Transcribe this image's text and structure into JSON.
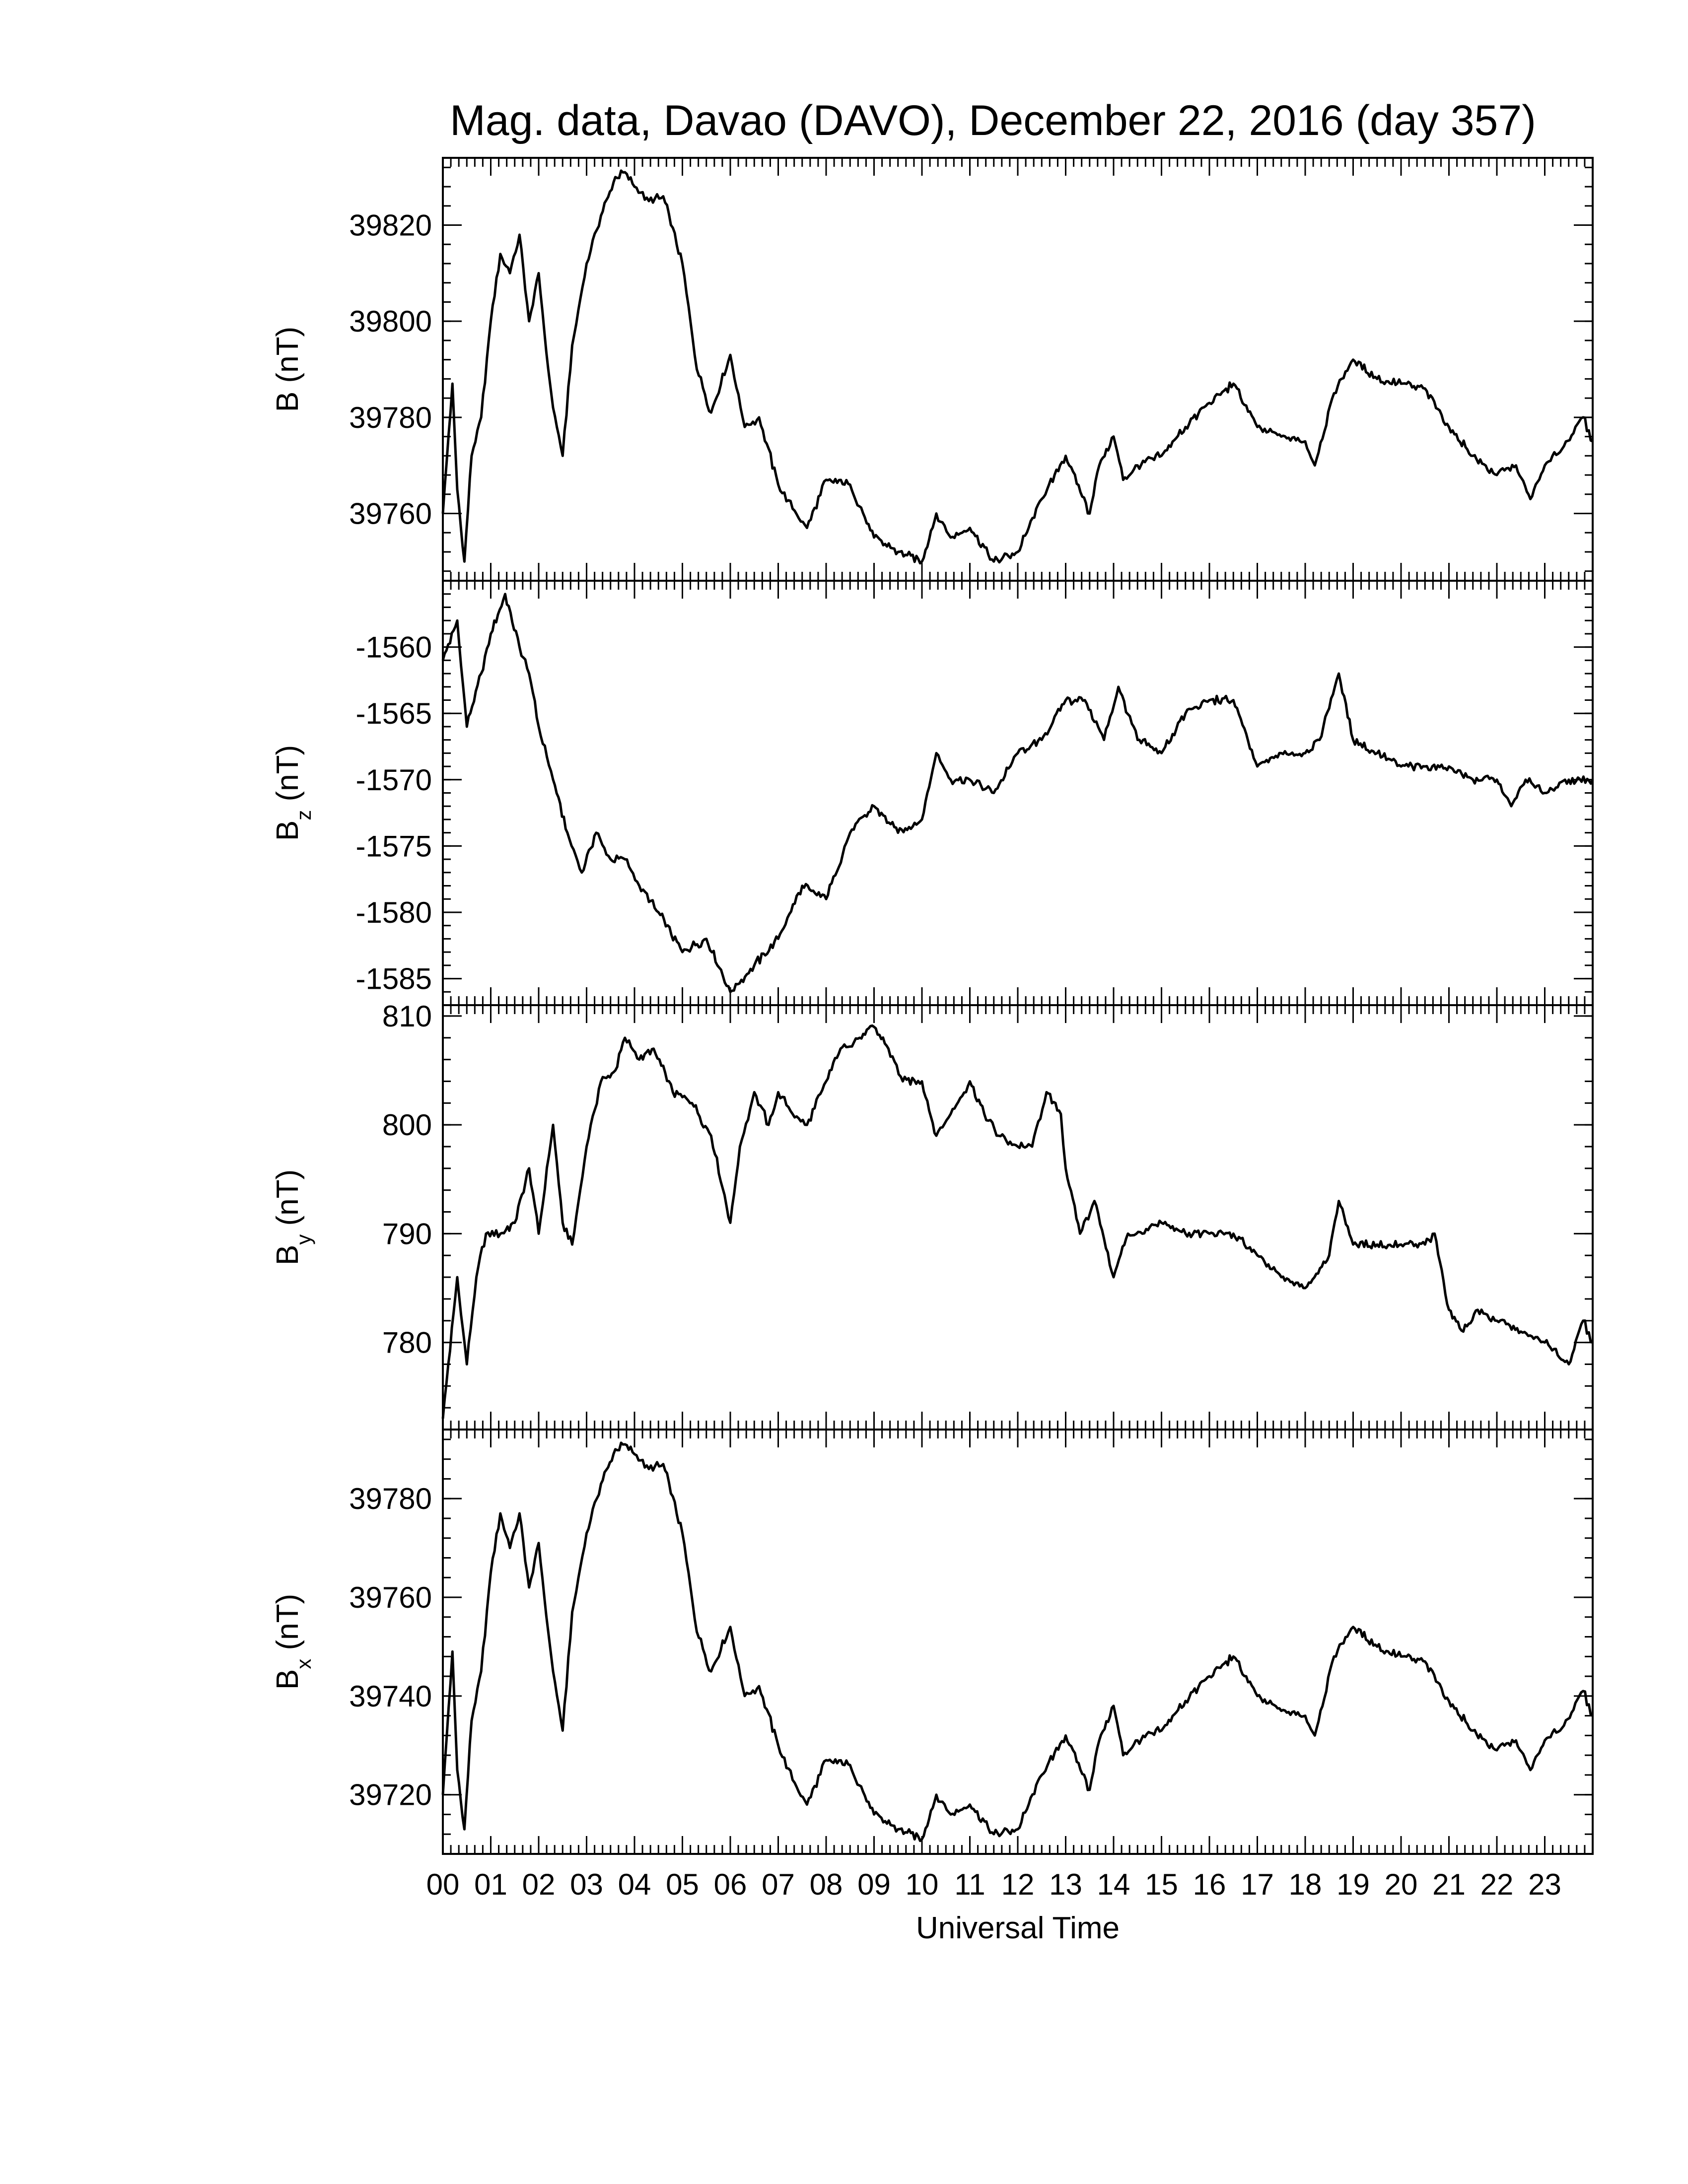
{
  "title": "Mag. data, Davao (DAVO), December 22, 2016 (day 357)",
  "x_axis": {
    "label": "Universal Time",
    "tick_labels": [
      "00",
      "01",
      "02",
      "03",
      "04",
      "05",
      "06",
      "07",
      "08",
      "09",
      "10",
      "11",
      "12",
      "13",
      "14",
      "15",
      "16",
      "17",
      "18",
      "19",
      "20",
      "21",
      "22",
      "23"
    ]
  },
  "chart_data": [
    {
      "type": "line",
      "panel": "B",
      "ylabel": "B (nT)",
      "ylabel_main": "B",
      "ylabel_sub": "",
      "ylabel_unit": "(nT)",
      "xlim": [
        0,
        24
      ],
      "ylim": [
        39746,
        39834
      ],
      "yticks": [
        39760,
        39780,
        39800,
        39820
      ],
      "yticklabels": [
        "39760",
        "39780",
        "39800",
        "39820"
      ],
      "x": [
        0.0,
        0.2,
        0.3,
        0.45,
        0.6,
        0.8,
        1.0,
        1.2,
        1.4,
        1.6,
        1.8,
        2.0,
        2.2,
        2.3,
        2.5,
        2.7,
        3.0,
        3.3,
        3.6,
        3.8,
        4.0,
        4.3,
        4.6,
        5.0,
        5.3,
        5.6,
        6.0,
        6.3,
        6.6,
        7.0,
        7.3,
        7.6,
        8.0,
        8.5,
        9.0,
        9.5,
        10.0,
        10.3,
        10.6,
        11.0,
        11.5,
        12.0,
        12.5,
        13.0,
        13.5,
        13.7,
        14.0,
        14.2,
        14.5,
        15.0,
        15.5,
        16.0,
        16.5,
        17.0,
        17.5,
        18.0,
        18.2,
        18.6,
        19.0,
        19.5,
        20.0,
        20.5,
        21.0,
        21.5,
        22.0,
        22.4,
        22.7,
        23.0,
        23.4,
        23.8,
        24.0
      ],
      "y": [
        39760,
        39787,
        39765,
        39750,
        39772,
        39780,
        39800,
        39814,
        39810,
        39818,
        39800,
        39810,
        39790,
        39782,
        39772,
        39795,
        39812,
        39822,
        39830,
        39831,
        39828,
        39825,
        39826,
        39812,
        39790,
        39781,
        39793,
        39778,
        39780,
        39766,
        39761,
        39757,
        39767,
        39766,
        39755,
        39752,
        39750,
        39760,
        39755,
        39757,
        39750,
        39752,
        39763,
        39772,
        39760,
        39770,
        39776,
        39767,
        39770,
        39772,
        39778,
        39783,
        39787,
        39778,
        39776,
        39775,
        39770,
        39785,
        39792,
        39788,
        39787,
        39786,
        39778,
        39772,
        39768,
        39770,
        39763,
        39770,
        39774,
        39780,
        39775
      ]
    },
    {
      "type": "line",
      "panel": "Bz",
      "ylabel": "Bz (nT)",
      "ylabel_main": "B",
      "ylabel_sub": "z",
      "ylabel_unit": "(nT)",
      "xlim": [
        0,
        24
      ],
      "ylim": [
        -1587,
        -1555
      ],
      "yticks": [
        -1585,
        -1580,
        -1575,
        -1570,
        -1565,
        -1560
      ],
      "yticklabels": [
        "-1585",
        "-1580",
        "-1575",
        "-1570",
        "-1565",
        "-1560"
      ],
      "x": [
        0.0,
        0.3,
        0.5,
        0.8,
        1.0,
        1.3,
        1.6,
        1.8,
        2.0,
        2.3,
        2.6,
        2.9,
        3.2,
        3.5,
        3.8,
        4.1,
        4.5,
        5.0,
        5.5,
        6.0,
        6.5,
        7.0,
        7.5,
        8.0,
        8.5,
        9.0,
        9.5,
        10.0,
        10.3,
        10.6,
        11.0,
        11.5,
        12.0,
        12.5,
        13.0,
        13.4,
        13.8,
        14.1,
        14.5,
        15.0,
        15.5,
        16.0,
        16.5,
        17.0,
        17.5,
        18.0,
        18.3,
        18.7,
        19.0,
        19.5,
        20.0,
        20.5,
        21.0,
        21.5,
        22.0,
        22.3,
        22.6,
        23.0,
        23.5,
        24.0
      ],
      "y": [
        -1561,
        -1558,
        -1566,
        -1562,
        -1559,
        -1556,
        -1560,
        -1562,
        -1566,
        -1570,
        -1574,
        -1577,
        -1574,
        -1576,
        -1576,
        -1578,
        -1580,
        -1583,
        -1582,
        -1586,
        -1584,
        -1582,
        -1578,
        -1579,
        -1574,
        -1572,
        -1574,
        -1573,
        -1568,
        -1570,
        -1570,
        -1571,
        -1568,
        -1567,
        -1564,
        -1564,
        -1567,
        -1563,
        -1567,
        -1568,
        -1565,
        -1564,
        -1564,
        -1569,
        -1568,
        -1568,
        -1567,
        -1562,
        -1567,
        -1568,
        -1569,
        -1569,
        -1569,
        -1570,
        -1570,
        -1572,
        -1570,
        -1571,
        -1570,
        -1570
      ]
    },
    {
      "type": "line",
      "panel": "By",
      "ylabel": "By (nT)",
      "ylabel_main": "B",
      "ylabel_sub": "y",
      "ylabel_unit": "(nT)",
      "xlim": [
        0,
        24
      ],
      "ylim": [
        772,
        811
      ],
      "yticks": [
        780,
        790,
        800,
        810
      ],
      "yticklabels": [
        "780",
        "790",
        "800",
        "810"
      ],
      "x": [
        0.0,
        0.3,
        0.5,
        0.7,
        0.9,
        1.2,
        1.5,
        1.8,
        2.0,
        2.3,
        2.5,
        2.7,
        3.0,
        3.3,
        3.6,
        3.8,
        4.1,
        4.4,
        4.8,
        5.2,
        5.6,
        6.0,
        6.2,
        6.5,
        6.8,
        7.0,
        7.3,
        7.6,
        8.0,
        8.3,
        8.7,
        9.0,
        9.3,
        9.6,
        10.0,
        10.3,
        10.6,
        11.0,
        11.3,
        11.6,
        12.0,
        12.3,
        12.6,
        12.9,
        13.0,
        13.3,
        13.6,
        14.0,
        14.3,
        14.6,
        15.0,
        15.5,
        16.0,
        16.5,
        17.0,
        17.5,
        18.0,
        18.5,
        18.7,
        19.0,
        19.5,
        20.0,
        20.5,
        20.7,
        21.0,
        21.3,
        21.6,
        22.0,
        22.5,
        23.0,
        23.5,
        23.8,
        24.0
      ],
      "y": [
        773,
        786,
        778,
        786,
        790,
        790,
        791,
        796,
        790,
        800,
        791,
        789,
        798,
        804,
        805,
        808,
        806,
        807,
        803,
        802,
        799,
        791,
        798,
        803,
        800,
        803,
        801,
        800,
        804,
        807,
        808,
        809,
        807,
        804,
        804,
        799,
        801,
        804,
        801,
        799,
        798,
        798,
        803,
        801,
        796,
        790,
        793,
        786,
        790,
        790,
        791,
        790,
        790,
        790,
        788,
        786,
        785,
        788,
        793,
        789,
        789,
        789,
        789,
        790,
        783,
        781,
        783,
        782,
        781,
        780,
        778,
        782,
        780
      ]
    },
    {
      "type": "line",
      "panel": "Bx",
      "ylabel": "Bx (nT)",
      "ylabel_main": "B",
      "ylabel_sub": "x",
      "ylabel_unit": "(nT)",
      "xlim": [
        0,
        24
      ],
      "ylim": [
        39708,
        39794
      ],
      "yticks": [
        39720,
        39740,
        39760,
        39780
      ],
      "yticklabels": [
        "39720",
        "39740",
        "39760",
        "39780"
      ],
      "x": [
        0.0,
        0.2,
        0.3,
        0.45,
        0.6,
        0.8,
        1.0,
        1.2,
        1.4,
        1.6,
        1.8,
        2.0,
        2.2,
        2.3,
        2.5,
        2.7,
        3.0,
        3.3,
        3.6,
        3.8,
        4.0,
        4.3,
        4.6,
        5.0,
        5.3,
        5.6,
        6.0,
        6.3,
        6.6,
        7.0,
        7.3,
        7.6,
        8.0,
        8.5,
        9.0,
        9.5,
        10.0,
        10.3,
        10.6,
        11.0,
        11.5,
        12.0,
        12.5,
        13.0,
        13.5,
        13.7,
        14.0,
        14.2,
        14.5,
        15.0,
        15.5,
        16.0,
        16.5,
        17.0,
        17.5,
        18.0,
        18.2,
        18.6,
        19.0,
        19.5,
        20.0,
        20.5,
        21.0,
        21.5,
        22.0,
        22.4,
        22.7,
        23.0,
        23.4,
        23.8,
        24.0
      ],
      "y": [
        39720,
        39749,
        39725,
        39713,
        39735,
        39745,
        39765,
        39777,
        39770,
        39777,
        39762,
        39771,
        39753,
        39745,
        39733,
        39757,
        39773,
        39783,
        39790,
        39791,
        39789,
        39786,
        39787,
        39773,
        39753,
        39745,
        39754,
        39740,
        39742,
        39730,
        39723,
        39718,
        39727,
        39726,
        39716,
        39713,
        39711,
        39720,
        39716,
        39718,
        39712,
        39713,
        39724,
        39732,
        39721,
        39731,
        39738,
        39728,
        39731,
        39733,
        39739,
        39744,
        39748,
        39740,
        39737,
        39736,
        39732,
        39748,
        39754,
        39750,
        39748,
        39747,
        39739,
        39733,
        39729,
        39731,
        39725,
        39731,
        39734,
        39741,
        39736
      ]
    }
  ]
}
